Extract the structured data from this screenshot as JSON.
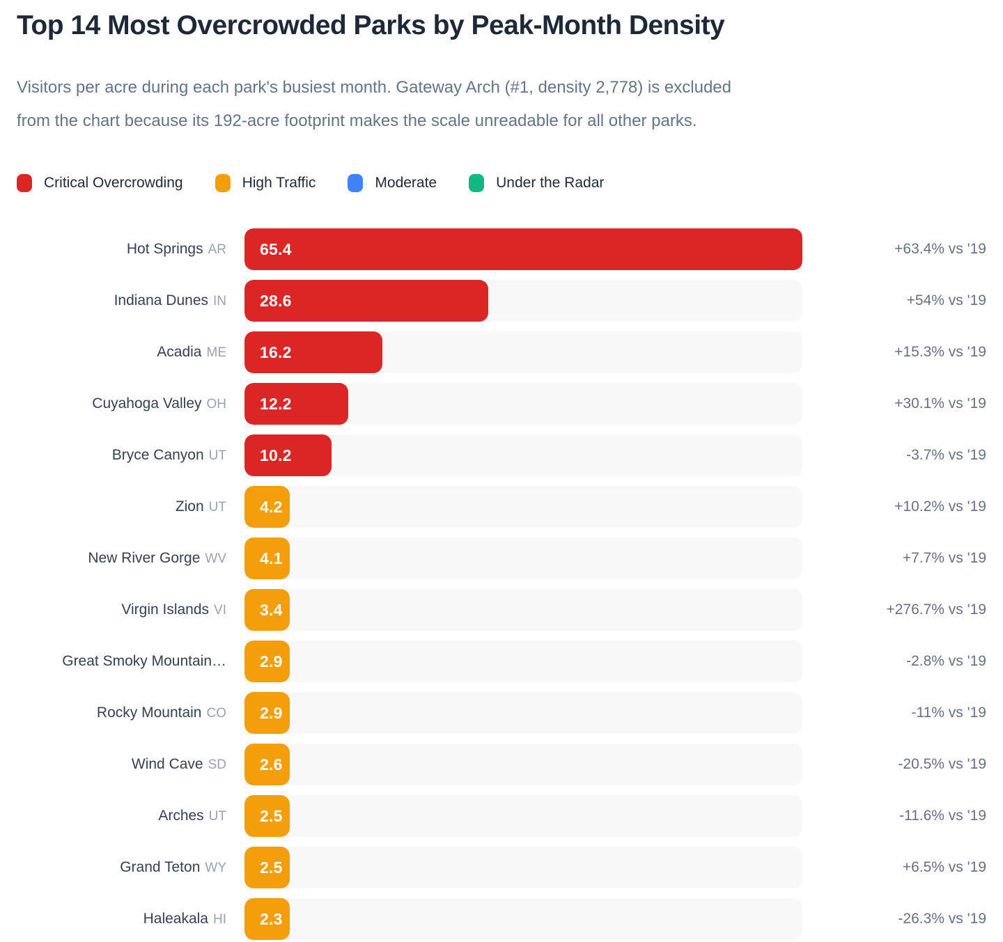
{
  "header": {
    "title": "Top 14 Most Overcrowded Parks by Peak-Month Density",
    "subtitle": "Visitors per acre during each park's busiest month. Gateway Arch (#1, density 2,778) is excluded\nfrom the chart because its 192-acre footprint makes the scale unreadable for all other parks."
  },
  "legend": {
    "items": [
      {
        "label": "Critical Overcrowding",
        "key": "critical",
        "color": "#DC2626"
      },
      {
        "label": "High Traffic",
        "key": "high",
        "color": "#F59E0B"
      },
      {
        "label": "Moderate",
        "key": "moderate",
        "color": "#3F83F8"
      },
      {
        "label": "Under the Radar",
        "key": "under",
        "color": "#10B981"
      }
    ]
  },
  "colors": {
    "critical": "#DC2626",
    "high": "#F59E0B",
    "moderate": "#3F83F8",
    "under": "#10B981",
    "track": "#F8F8F9"
  },
  "chart_data": {
    "type": "bar",
    "orientation": "horizontal",
    "title": "Top 14 Most Overcrowded Parks by Peak-Month Density",
    "xlim": [
      0,
      65.4
    ],
    "grid": false,
    "legend_position": "top",
    "bars": [
      {
        "park": "Hot Springs",
        "state": "AR",
        "value": 65.4,
        "change_vs_2019": "+63.4% vs '19",
        "category": "critical"
      },
      {
        "park": "Indiana Dunes",
        "state": "IN",
        "value": 28.6,
        "change_vs_2019": "+54% vs '19",
        "category": "critical"
      },
      {
        "park": "Acadia",
        "state": "ME",
        "value": 16.2,
        "change_vs_2019": "+15.3% vs '19",
        "category": "critical"
      },
      {
        "park": "Cuyahoga Valley",
        "state": "OH",
        "value": 12.2,
        "change_vs_2019": "+30.1% vs '19",
        "category": "critical"
      },
      {
        "park": "Bryce Canyon",
        "state": "UT",
        "value": 10.2,
        "change_vs_2019": "-3.7% vs '19",
        "category": "critical"
      },
      {
        "park": "Zion",
        "state": "UT",
        "value": 4.2,
        "change_vs_2019": "+10.2% vs '19",
        "category": "high"
      },
      {
        "park": "New River Gorge",
        "state": "WV",
        "value": 4.1,
        "change_vs_2019": "+7.7% vs '19",
        "category": "high"
      },
      {
        "park": "Virgin Islands",
        "state": "VI",
        "value": 3.4,
        "change_vs_2019": "+276.7% vs '19",
        "category": "high"
      },
      {
        "park": "Great Smoky Mountain…",
        "state": "",
        "value": 2.9,
        "change_vs_2019": "-2.8% vs '19",
        "category": "high"
      },
      {
        "park": "Rocky Mountain",
        "state": "CO",
        "value": 2.9,
        "change_vs_2019": "-11% vs '19",
        "category": "high"
      },
      {
        "park": "Wind Cave",
        "state": "SD",
        "value": 2.6,
        "change_vs_2019": "-20.5% vs '19",
        "category": "high"
      },
      {
        "park": "Arches",
        "state": "UT",
        "value": 2.5,
        "change_vs_2019": "-11.6% vs '19",
        "category": "high"
      },
      {
        "park": "Grand Teton",
        "state": "WY",
        "value": 2.5,
        "change_vs_2019": "+6.5% vs '19",
        "category": "high"
      },
      {
        "park": "Haleakala",
        "state": "HI",
        "value": 2.3,
        "change_vs_2019": "-26.3% vs '19",
        "category": "high"
      }
    ]
  }
}
